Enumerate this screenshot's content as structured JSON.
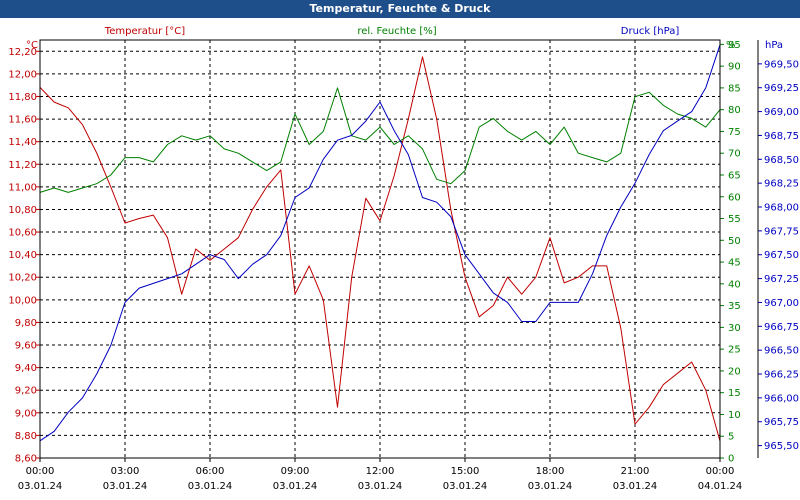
{
  "window": {
    "title": "Temperatur, Feuchte & Druck"
  },
  "colors": {
    "temperature": "#c00000",
    "humidity": "#008000",
    "pressure": "#0000c0",
    "grid": "#000000",
    "titlebar": "#1f4f8a"
  },
  "chart_data": {
    "type": "line",
    "title": "Temperatur, Feuchte & Druck",
    "grid": true,
    "x_time_labels": [
      "00:00",
      "03:00",
      "06:00",
      "09:00",
      "12:00",
      "15:00",
      "18:00",
      "21:00",
      "00:00"
    ],
    "x_date_labels": [
      "03.01.24",
      "03.01.24",
      "03.01.24",
      "03.01.24",
      "03.01.24",
      "03.01.24",
      "03.01.24",
      "03.01.24",
      "04.01.24"
    ],
    "series": [
      {
        "name": "Temperatur [°C]",
        "unit": "°C",
        "axis": "left",
        "ylim": [
          8.6,
          12.3
        ],
        "ticks": [
          "8,60",
          "8,80",
          "9,00",
          "9,20",
          "9,40",
          "9,60",
          "9,80",
          "10,00",
          "10,20",
          "10,40",
          "10,60",
          "10,80",
          "11,00",
          "11,20",
          "11,40",
          "11,60",
          "11,80",
          "12,00",
          "12,20"
        ],
        "x": [
          "2024-01-03 00:00",
          "2024-01-03 00:30",
          "2024-01-03 01:00",
          "2024-01-03 01:30",
          "2024-01-03 02:00",
          "2024-01-03 02:30",
          "2024-01-03 03:00",
          "2024-01-03 03:30",
          "2024-01-03 04:00",
          "2024-01-03 04:30",
          "2024-01-03 05:00",
          "2024-01-03 05:30",
          "2024-01-03 06:00",
          "2024-01-03 06:30",
          "2024-01-03 07:00",
          "2024-01-03 07:30",
          "2024-01-03 08:00",
          "2024-01-03 08:30",
          "2024-01-03 09:00",
          "2024-01-03 09:30",
          "2024-01-03 10:00",
          "2024-01-03 10:30",
          "2024-01-03 11:00",
          "2024-01-03 11:30",
          "2024-01-03 12:00",
          "2024-01-03 12:30",
          "2024-01-03 13:00",
          "2024-01-03 13:30",
          "2024-01-03 14:00",
          "2024-01-03 14:30",
          "2024-01-03 15:00",
          "2024-01-03 15:30",
          "2024-01-03 16:00",
          "2024-01-03 16:30",
          "2024-01-03 17:00",
          "2024-01-03 17:30",
          "2024-01-03 18:00",
          "2024-01-03 18:30",
          "2024-01-03 19:00",
          "2024-01-03 19:30",
          "2024-01-03 20:00",
          "2024-01-03 20:30",
          "2024-01-03 21:00",
          "2024-01-03 21:30",
          "2024-01-03 22:00",
          "2024-01-03 22:30",
          "2024-01-03 23:00",
          "2024-01-03 23:30",
          "2024-01-04 00:00"
        ],
        "values": [
          11.88,
          11.75,
          11.7,
          11.55,
          11.3,
          11.0,
          10.68,
          10.72,
          10.75,
          10.55,
          10.05,
          10.45,
          10.35,
          10.45,
          10.55,
          10.8,
          11.0,
          11.15,
          10.05,
          10.3,
          10.0,
          9.05,
          10.2,
          10.9,
          10.7,
          11.1,
          11.6,
          12.15,
          11.6,
          10.8,
          10.2,
          9.85,
          9.95,
          10.2,
          10.05,
          10.2,
          10.55,
          10.15,
          10.2,
          10.3,
          10.3,
          9.75,
          8.9,
          9.05,
          9.25,
          9.35,
          9.45,
          9.2,
          8.75
        ]
      },
      {
        "name": "rel. Feuchte [%]",
        "unit": "%",
        "axis": "right",
        "ylim": [
          0,
          96
        ],
        "ticks": [
          "0",
          "5",
          "10",
          "15",
          "20",
          "25",
          "30",
          "35",
          "40",
          "45",
          "50",
          "55",
          "60",
          "65",
          "70",
          "75",
          "80",
          "85",
          "90",
          "95"
        ],
        "x": [
          "2024-01-03 00:00",
          "2024-01-03 00:30",
          "2024-01-03 01:00",
          "2024-01-03 01:30",
          "2024-01-03 02:00",
          "2024-01-03 02:30",
          "2024-01-03 03:00",
          "2024-01-03 03:30",
          "2024-01-03 04:00",
          "2024-01-03 04:30",
          "2024-01-03 05:00",
          "2024-01-03 05:30",
          "2024-01-03 06:00",
          "2024-01-03 06:30",
          "2024-01-03 07:00",
          "2024-01-03 07:30",
          "2024-01-03 08:00",
          "2024-01-03 08:30",
          "2024-01-03 09:00",
          "2024-01-03 09:30",
          "2024-01-03 10:00",
          "2024-01-03 10:30",
          "2024-01-03 11:00",
          "2024-01-03 11:30",
          "2024-01-03 12:00",
          "2024-01-03 12:30",
          "2024-01-03 13:00",
          "2024-01-03 13:30",
          "2024-01-03 14:00",
          "2024-01-03 14:30",
          "2024-01-03 15:00",
          "2024-01-03 15:30",
          "2024-01-03 16:00",
          "2024-01-03 16:30",
          "2024-01-03 17:00",
          "2024-01-03 17:30",
          "2024-01-03 18:00",
          "2024-01-03 18:30",
          "2024-01-03 19:00",
          "2024-01-03 19:30",
          "2024-01-03 20:00",
          "2024-01-03 20:30",
          "2024-01-03 21:00",
          "2024-01-03 21:30",
          "2024-01-03 22:00",
          "2024-01-03 22:30",
          "2024-01-03 23:00",
          "2024-01-03 23:30",
          "2024-01-04 00:00"
        ],
        "values": [
          61,
          62,
          61,
          62,
          63,
          65,
          69,
          69,
          68,
          72,
          74,
          73,
          74,
          71,
          70,
          68,
          66,
          68,
          79,
          72,
          75,
          85,
          74,
          73,
          76,
          72,
          74,
          71,
          64,
          63,
          66,
          76,
          78,
          75,
          73,
          75,
          72,
          76,
          70,
          69,
          68,
          70,
          83,
          84,
          81,
          79,
          78,
          76,
          80
        ]
      },
      {
        "name": "Druck [hPa]",
        "unit": "hPa",
        "axis": "right",
        "ylim": [
          965.37,
          969.75
        ],
        "ticks": [
          "965,50",
          "965,75",
          "966,00",
          "966,25",
          "966,50",
          "966,75",
          "967,00",
          "967,25",
          "967,50",
          "967,75",
          "968,00",
          "968,25",
          "968,50",
          "968,75",
          "969,00",
          "969,25",
          "969,50"
        ],
        "x": [
          "2024-01-03 00:00",
          "2024-01-03 00:30",
          "2024-01-03 01:00",
          "2024-01-03 01:30",
          "2024-01-03 02:00",
          "2024-01-03 02:30",
          "2024-01-03 03:00",
          "2024-01-03 03:30",
          "2024-01-03 04:00",
          "2024-01-03 04:30",
          "2024-01-03 05:00",
          "2024-01-03 05:30",
          "2024-01-03 06:00",
          "2024-01-03 06:30",
          "2024-01-03 07:00",
          "2024-01-03 07:30",
          "2024-01-03 08:00",
          "2024-01-03 08:30",
          "2024-01-03 09:00",
          "2024-01-03 09:30",
          "2024-01-03 10:00",
          "2024-01-03 10:30",
          "2024-01-03 11:00",
          "2024-01-03 11:30",
          "2024-01-03 12:00",
          "2024-01-03 12:30",
          "2024-01-03 13:00",
          "2024-01-03 13:30",
          "2024-01-03 14:00",
          "2024-01-03 14:30",
          "2024-01-03 15:00",
          "2024-01-03 15:30",
          "2024-01-03 16:00",
          "2024-01-03 16:30",
          "2024-01-03 17:00",
          "2024-01-03 17:30",
          "2024-01-03 18:00",
          "2024-01-03 18:30",
          "2024-01-03 19:00",
          "2024-01-03 19:30",
          "2024-01-03 20:00",
          "2024-01-03 20:30",
          "2024-01-03 21:00",
          "2024-01-03 21:30",
          "2024-01-03 22:00",
          "2024-01-03 22:30",
          "2024-01-03 23:00",
          "2024-01-03 23:30",
          "2024-01-04 00:00"
        ],
        "values": [
          965.55,
          965.65,
          965.85,
          966.0,
          966.25,
          966.55,
          967.0,
          967.15,
          967.2,
          967.25,
          967.3,
          967.4,
          967.5,
          967.45,
          967.25,
          967.4,
          967.5,
          967.7,
          968.1,
          968.2,
          968.5,
          968.7,
          968.75,
          968.9,
          969.1,
          968.8,
          968.55,
          968.1,
          968.05,
          967.9,
          967.5,
          967.3,
          967.1,
          967.0,
          966.8,
          966.8,
          967.0,
          967.0,
          967.0,
          967.3,
          967.7,
          968.0,
          968.25,
          968.55,
          968.8,
          968.9,
          969.0,
          969.25,
          969.7
        ]
      }
    ]
  }
}
